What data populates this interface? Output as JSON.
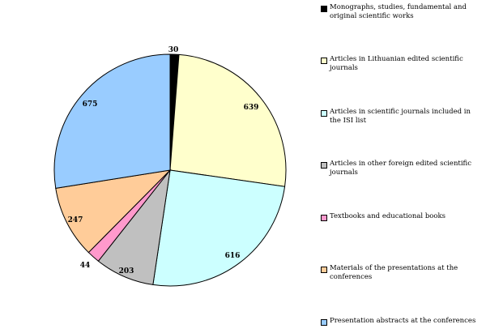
{
  "chart_data": {
    "type": "pie",
    "title": "",
    "legend_position": "right",
    "slices": [
      {
        "label": "Monographs, studies, fundamental and original scientific works",
        "value": 30,
        "value_label": "30",
        "color": "#000000"
      },
      {
        "label": "Articles in Lithuanian edited scientific journals",
        "value": 639,
        "value_label": "639",
        "color": "#ffffcc"
      },
      {
        "label": "Articles in scientific journals included in the ISI list",
        "value": 616,
        "value_label": "616",
        "color": "#ccffff"
      },
      {
        "label": "Articles in other foreign edited scientific journals",
        "value": 203,
        "value_label": "203",
        "color": "#c0c0c0"
      },
      {
        "label": "Textbooks and educational books",
        "value": 44,
        "value_label": "44",
        "color": "#ff99cc"
      },
      {
        "label": "Materials of the presentations at the conferences",
        "value": 247,
        "value_label": "247",
        "color": "#ffcc99"
      },
      {
        "label": "Presentation abstracts at the conferences",
        "value": 675,
        "value_label": "675",
        "color": "#99ccff"
      }
    ]
  }
}
